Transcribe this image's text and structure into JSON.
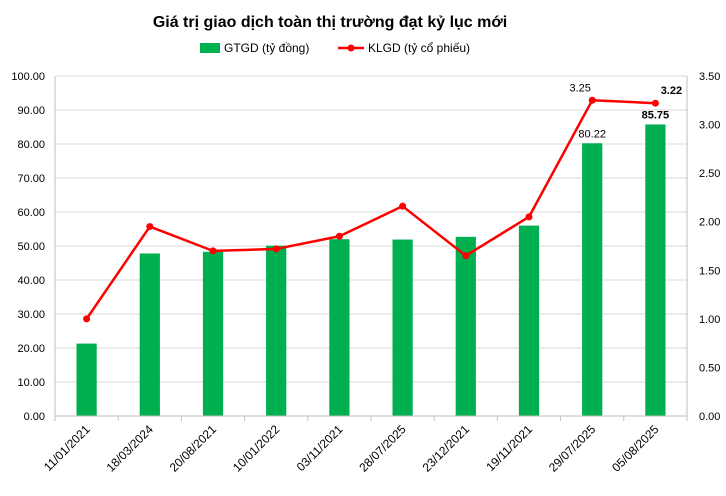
{
  "chart_data": {
    "type": "bar+line",
    "title": "Giá trị giao dịch toàn thị trường đạt kỷ lục mới",
    "categories": [
      "11/01/2021",
      "18/03/2024",
      "20/08/2021",
      "10/01/2022",
      "03/11/2021",
      "28/07/2025",
      "23/12/2021",
      "19/11/2021",
      "29/07/2025",
      "05/08/2025"
    ],
    "series": [
      {
        "name": "GTGD (tỷ đồng)",
        "type": "bar",
        "axis": "left",
        "color": "#00b050",
        "values": [
          21.3,
          47.8,
          48.3,
          50.1,
          52.0,
          51.9,
          52.7,
          56.0,
          80.22,
          85.75
        ]
      },
      {
        "name": "KLGD (tỷ cổ phiếu)",
        "type": "line",
        "axis": "right",
        "color": "#ff0000",
        "values": [
          1.0,
          1.95,
          1.7,
          1.72,
          1.85,
          2.16,
          1.65,
          2.05,
          3.25,
          3.22
        ]
      }
    ],
    "data_labels": [
      {
        "series": 0,
        "index": 8,
        "text": "80.22",
        "bold": false
      },
      {
        "series": 0,
        "index": 9,
        "text": "85.75",
        "bold": true
      },
      {
        "series": 1,
        "index": 8,
        "text": "3.25",
        "bold": false
      },
      {
        "series": 1,
        "index": 9,
        "text": "3.22",
        "bold": true
      }
    ],
    "y_left": {
      "min": 0,
      "max": 100,
      "ticks": [
        "0.00",
        "10.00",
        "20.00",
        "30.00",
        "40.00",
        "50.00",
        "60.00",
        "70.00",
        "80.00",
        "90.00",
        "100.00"
      ]
    },
    "y_right": {
      "min": 0,
      "max": 3.5,
      "ticks": [
        "0.00",
        "0.50",
        "1.00",
        "1.50",
        "2.00",
        "2.50",
        "3.00",
        "3.50"
      ]
    },
    "grid": true,
    "legend_position": "top"
  }
}
